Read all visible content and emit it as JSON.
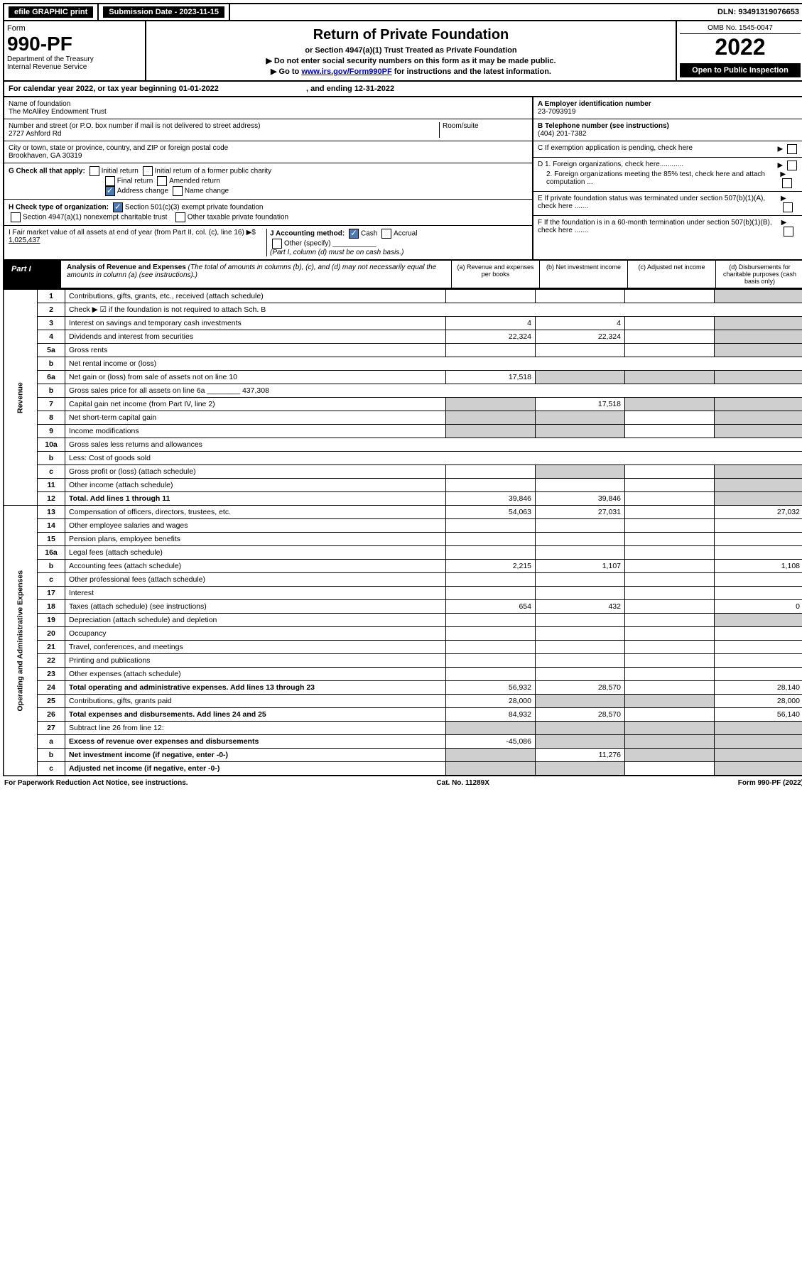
{
  "colors": {
    "black": "#000000",
    "white": "#ffffff",
    "link": "#0000cc",
    "shade": "#cfcfcf",
    "check_blue": "#4a7ab5"
  },
  "topbar": {
    "efile": "efile GRAPHIC print",
    "sub_label": "Submission Date - 2023-11-15",
    "dln": "DLN: 93491319076653"
  },
  "header": {
    "form_word": "Form",
    "form_number": "990-PF",
    "dept": "Department of the Treasury",
    "irs": "Internal Revenue Service",
    "title": "Return of Private Foundation",
    "subtitle": "or Section 4947(a)(1) Trust Treated as Private Foundation",
    "note1": "▶ Do not enter social security numbers on this form as it may be made public.",
    "note2_pre": "▶ Go to ",
    "note2_link": "www.irs.gov/Form990PF",
    "note2_post": " for instructions and the latest information.",
    "omb": "OMB No. 1545-0047",
    "year": "2022",
    "open": "Open to Public Inspection"
  },
  "cal_year": {
    "left": "For calendar year 2022, or tax year beginning 01-01-2022",
    "right": ", and ending 12-31-2022"
  },
  "info": {
    "name_label": "Name of foundation",
    "name": "The McAliley Endowment Trust",
    "addr_label": "Number and street (or P.O. box number if mail is not delivered to street address)",
    "room_label": "Room/suite",
    "addr": "2727 Ashford Rd",
    "city_label": "City or town, state or province, country, and ZIP or foreign postal code",
    "city": "Brookhaven, GA  30319",
    "a_label": "A Employer identification number",
    "a_val": "23-7093919",
    "b_label": "B Telephone number (see instructions)",
    "b_val": "(404) 201-7382",
    "c_label": "C If exemption application is pending, check here",
    "d1": "D 1. Foreign organizations, check here............",
    "d2": "2. Foreign organizations meeting the 85% test, check here and attach computation ...",
    "e": "E  If private foundation status was terminated under section 507(b)(1)(A), check here .......",
    "f": "F  If the foundation is in a 60-month termination under section 507(b)(1)(B), check here .......",
    "g_label": "G Check all that apply:",
    "g_opts": [
      "Initial return",
      "Initial return of a former public charity",
      "Final return",
      "Amended return",
      "Address change",
      "Name change"
    ],
    "h_label": "H Check type of organization:",
    "h_opts": [
      "Section 501(c)(3) exempt private foundation",
      "Section 4947(a)(1) nonexempt charitable trust",
      "Other taxable private foundation"
    ],
    "i_label": "I Fair market value of all assets at end of year (from Part II, col. (c), line 16) ▶$ ",
    "i_val": "1,025,437",
    "j_label": "J Accounting method:",
    "j_opts": [
      "Cash",
      "Accrual",
      "Other (specify)"
    ],
    "j_note": "(Part I, column (d) must be on cash basis.)"
  },
  "part1": {
    "label": "Part I",
    "title": "Analysis of Revenue and Expenses",
    "subtitle": "(The total of amounts in columns (b), (c), and (d) may not necessarily equal the amounts in column (a) (see instructions).)",
    "cols": {
      "a": "(a)  Revenue and expenses per books",
      "b": "(b)  Net investment income",
      "c": "(c)  Adjusted net income",
      "d": "(d)  Disbursements for charitable purposes (cash basis only)"
    }
  },
  "sections": {
    "revenue": "Revenue",
    "expenses": "Operating and Administrative Expenses"
  },
  "rows": [
    {
      "n": "1",
      "desc": "Contributions, gifts, grants, etc., received (attach schedule)",
      "a": "",
      "b": "",
      "c": "",
      "d": "",
      "d_shade": true
    },
    {
      "n": "2",
      "desc": "Check ▶ ☑ if the foundation is not required to attach Sch. B",
      "nosplit": true
    },
    {
      "n": "3",
      "desc": "Interest on savings and temporary cash investments",
      "a": "4",
      "b": "4",
      "c": "",
      "d": "",
      "d_shade": true
    },
    {
      "n": "4",
      "desc": "Dividends and interest from securities",
      "a": "22,324",
      "b": "22,324",
      "c": "",
      "d": "",
      "d_shade": true
    },
    {
      "n": "5a",
      "desc": "Gross rents",
      "a": "",
      "b": "",
      "c": "",
      "d": "",
      "d_shade": true
    },
    {
      "n": "b",
      "desc": "Net rental income or (loss)",
      "nosplit": true
    },
    {
      "n": "6a",
      "desc": "Net gain or (loss) from sale of assets not on line 10",
      "a": "17,518",
      "b_shade": true,
      "c_shade": true,
      "d_shade": true
    },
    {
      "n": "b",
      "desc": "Gross sales price for all assets on line 6a ________ 437,308",
      "nosplit": true
    },
    {
      "n": "7",
      "desc": "Capital gain net income (from Part IV, line 2)",
      "a_shade": true,
      "b": "17,518",
      "c_shade": true,
      "d_shade": true
    },
    {
      "n": "8",
      "desc": "Net short-term capital gain",
      "a_shade": true,
      "b_shade": true,
      "c": "",
      "d_shade": true
    },
    {
      "n": "9",
      "desc": "Income modifications",
      "a_shade": true,
      "b_shade": true,
      "c": "",
      "d_shade": true
    },
    {
      "n": "10a",
      "desc": "Gross sales less returns and allowances",
      "nosplit": true
    },
    {
      "n": "b",
      "desc": "Less: Cost of goods sold",
      "nosplit": true
    },
    {
      "n": "c",
      "desc": "Gross profit or (loss) (attach schedule)",
      "a": "",
      "b_shade": true,
      "c": "",
      "d_shade": true
    },
    {
      "n": "11",
      "desc": "Other income (attach schedule)",
      "a": "",
      "b": "",
      "c": "",
      "d_shade": true
    },
    {
      "n": "12",
      "desc": "Total. Add lines 1 through 11",
      "bold": true,
      "a": "39,846",
      "b": "39,846",
      "c": "",
      "d_shade": true
    }
  ],
  "exp_rows": [
    {
      "n": "13",
      "desc": "Compensation of officers, directors, trustees, etc.",
      "a": "54,063",
      "b": "27,031",
      "c": "",
      "d": "27,032"
    },
    {
      "n": "14",
      "desc": "Other employee salaries and wages",
      "a": "",
      "b": "",
      "c": "",
      "d": ""
    },
    {
      "n": "15",
      "desc": "Pension plans, employee benefits",
      "a": "",
      "b": "",
      "c": "",
      "d": ""
    },
    {
      "n": "16a",
      "desc": "Legal fees (attach schedule)",
      "a": "",
      "b": "",
      "c": "",
      "d": ""
    },
    {
      "n": "b",
      "desc": "Accounting fees (attach schedule)",
      "a": "2,215",
      "b": "1,107",
      "c": "",
      "d": "1,108"
    },
    {
      "n": "c",
      "desc": "Other professional fees (attach schedule)",
      "a": "",
      "b": "",
      "c": "",
      "d": ""
    },
    {
      "n": "17",
      "desc": "Interest",
      "a": "",
      "b": "",
      "c": "",
      "d": ""
    },
    {
      "n": "18",
      "desc": "Taxes (attach schedule) (see instructions)",
      "a": "654",
      "b": "432",
      "c": "",
      "d": "0"
    },
    {
      "n": "19",
      "desc": "Depreciation (attach schedule) and depletion",
      "a": "",
      "b": "",
      "c": "",
      "d_shade": true
    },
    {
      "n": "20",
      "desc": "Occupancy",
      "a": "",
      "b": "",
      "c": "",
      "d": ""
    },
    {
      "n": "21",
      "desc": "Travel, conferences, and meetings",
      "a": "",
      "b": "",
      "c": "",
      "d": ""
    },
    {
      "n": "22",
      "desc": "Printing and publications",
      "a": "",
      "b": "",
      "c": "",
      "d": ""
    },
    {
      "n": "23",
      "desc": "Other expenses (attach schedule)",
      "a": "",
      "b": "",
      "c": "",
      "d": ""
    },
    {
      "n": "24",
      "desc": "Total operating and administrative expenses. Add lines 13 through 23",
      "bold": true,
      "a": "56,932",
      "b": "28,570",
      "c": "",
      "d": "28,140"
    },
    {
      "n": "25",
      "desc": "Contributions, gifts, grants paid",
      "a": "28,000",
      "b_shade": true,
      "c_shade": true,
      "d": "28,000"
    },
    {
      "n": "26",
      "desc": "Total expenses and disbursements. Add lines 24 and 25",
      "bold": true,
      "a": "84,932",
      "b": "28,570",
      "c": "",
      "d": "56,140"
    },
    {
      "n": "27",
      "desc": "Subtract line 26 from line 12:",
      "a_shade": true,
      "b_shade": true,
      "c_shade": true,
      "d_shade": true
    },
    {
      "n": "a",
      "desc": "Excess of revenue over expenses and disbursements",
      "bold": true,
      "a": "-45,086",
      "b_shade": true,
      "c_shade": true,
      "d_shade": true
    },
    {
      "n": "b",
      "desc": "Net investment income (if negative, enter -0-)",
      "bold": true,
      "a_shade": true,
      "b": "11,276",
      "c_shade": true,
      "d_shade": true
    },
    {
      "n": "c",
      "desc": "Adjusted net income (if negative, enter -0-)",
      "bold": true,
      "a_shade": true,
      "b_shade": true,
      "c": "",
      "d_shade": true
    }
  ],
  "footer": {
    "left": "For Paperwork Reduction Act Notice, see instructions.",
    "mid": "Cat. No. 11289X",
    "right": "Form 990-PF (2022)"
  }
}
